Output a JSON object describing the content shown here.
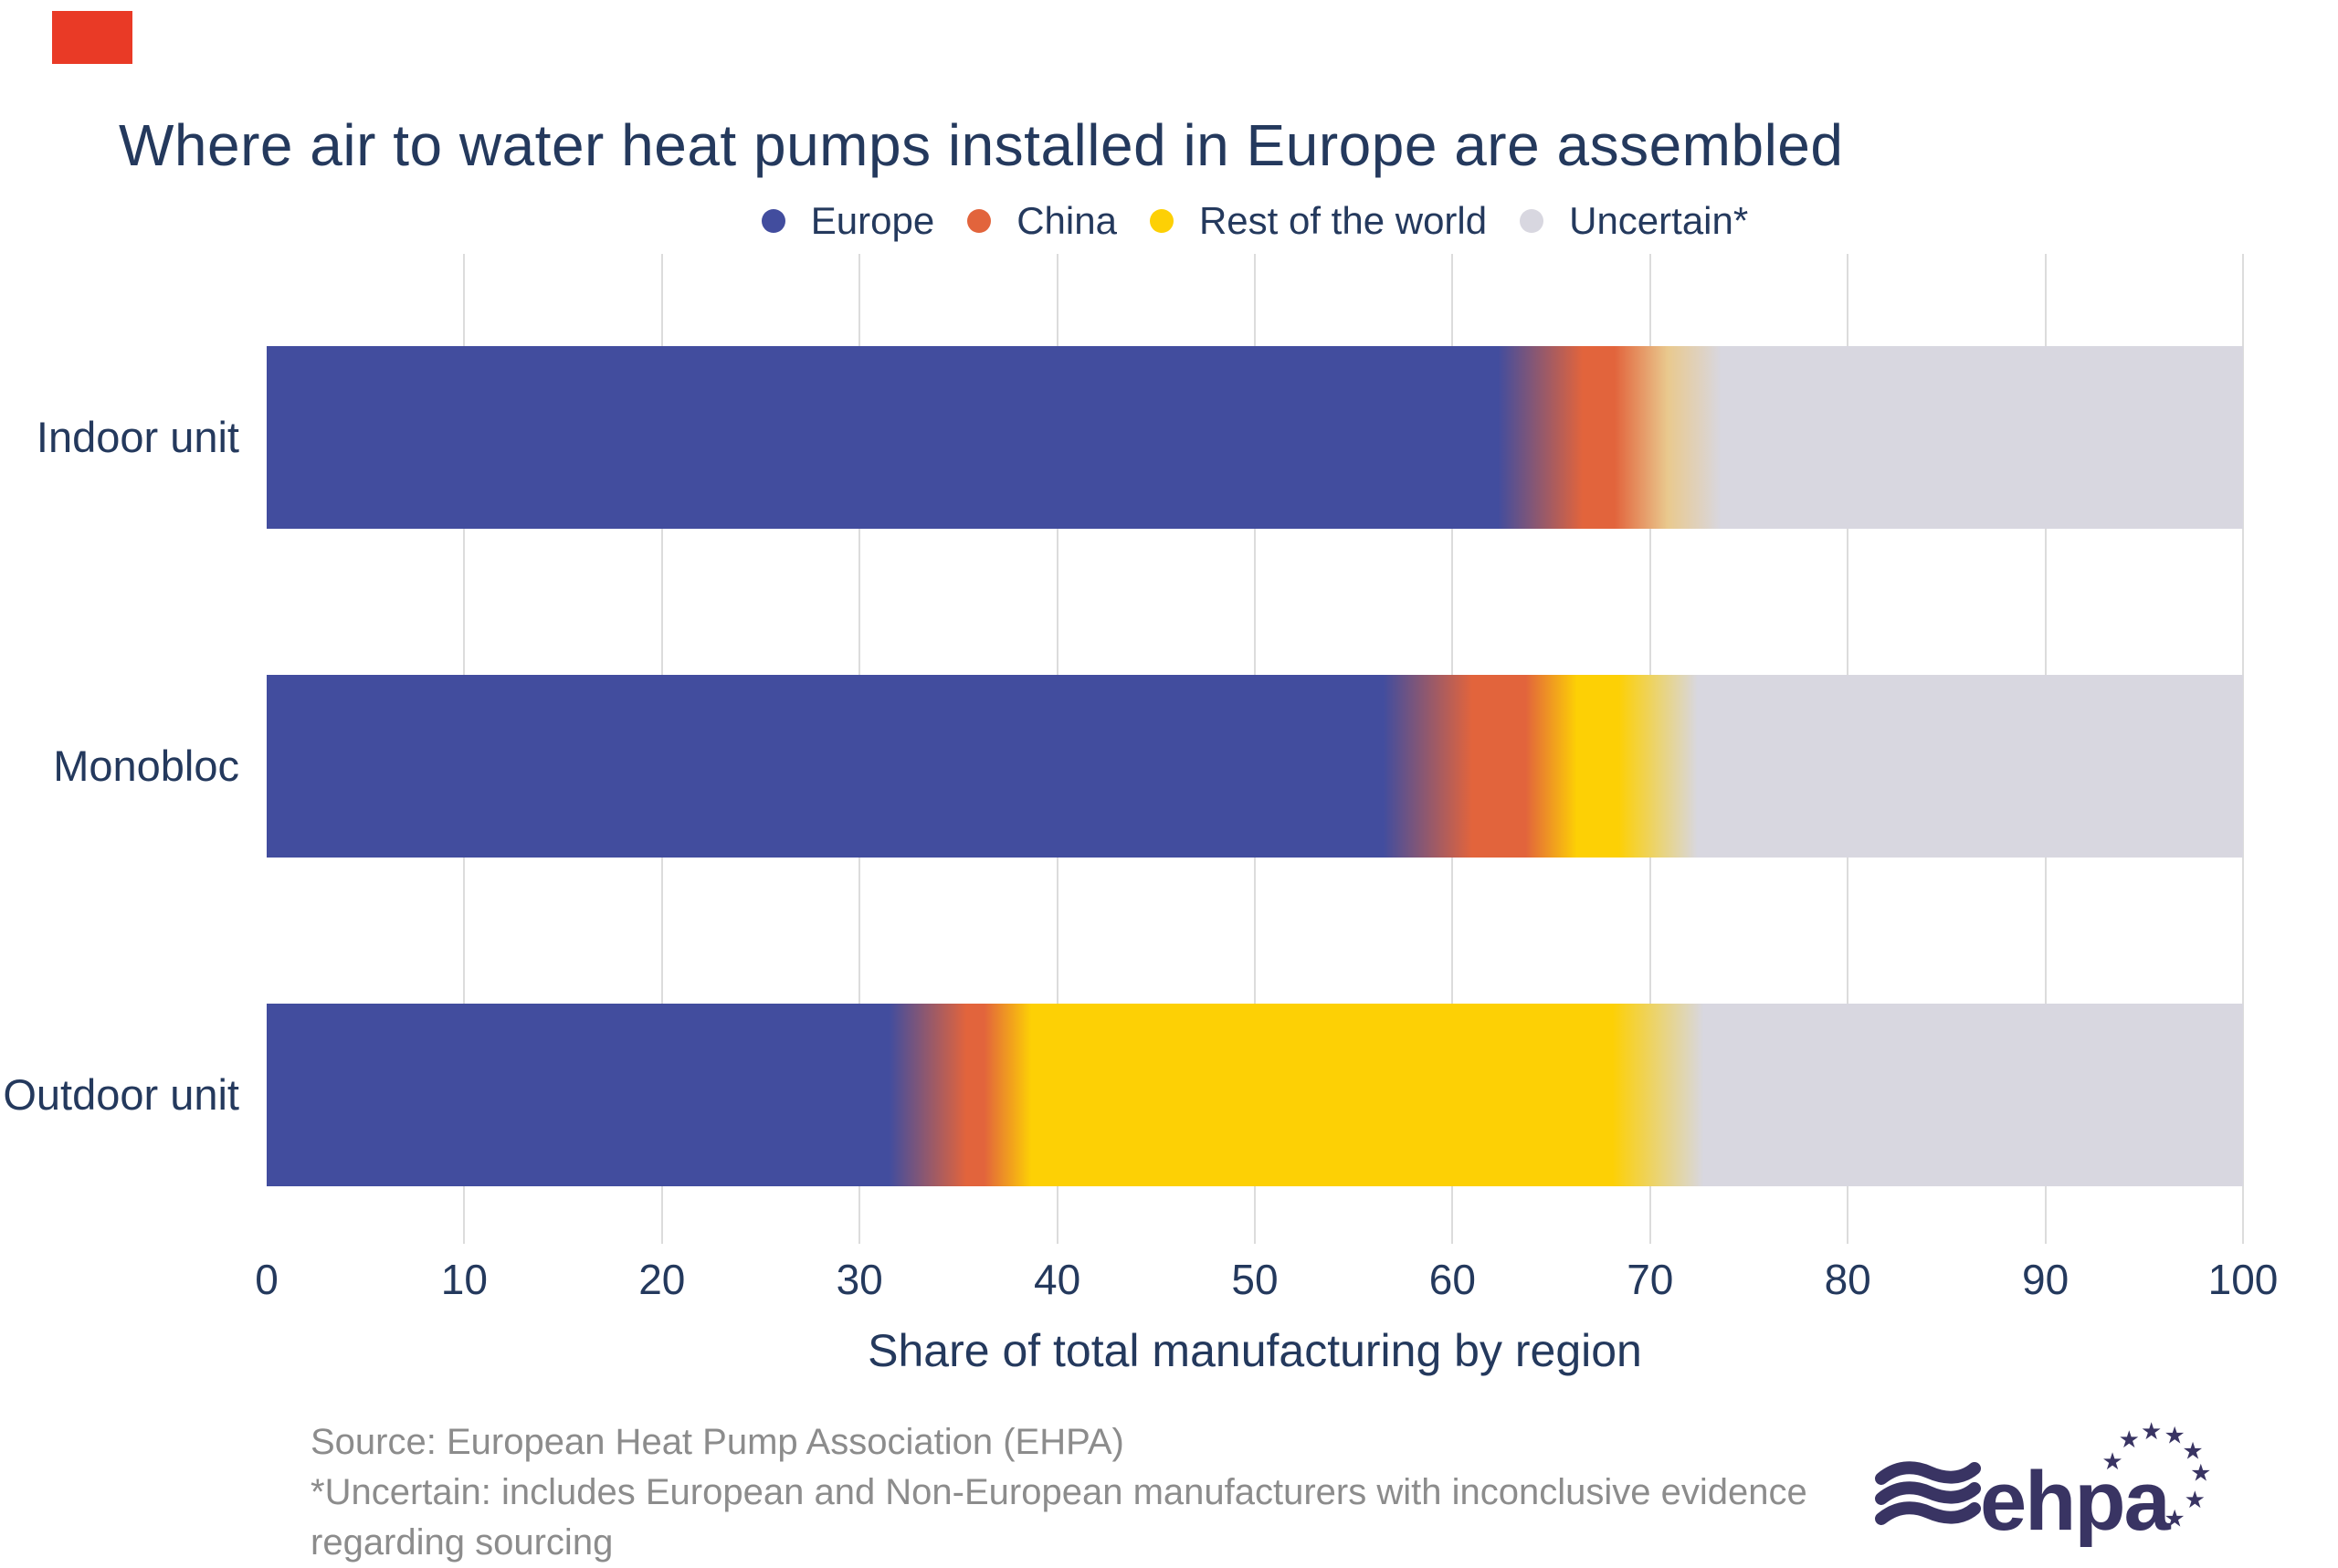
{
  "title": {
    "text": "Where air to water heat pumps installed in Europe are assembled",
    "color": "#24395d"
  },
  "corner_mark": {
    "color": "#e93a26"
  },
  "legend": {
    "items": [
      {
        "label": "Europe",
        "color": "#424d9e"
      },
      {
        "label": "China",
        "color": "#e2643c"
      },
      {
        "label": "Rest of the world",
        "color": "#fdd005"
      },
      {
        "label": "Uncertain*",
        "color": "#d8d7e0"
      }
    ]
  },
  "rows": [
    {
      "label": "Indoor unit",
      "gradient": [
        [
          "#424d9e",
          0
        ],
        [
          "#424d9e",
          62.3
        ],
        [
          "#e2643c",
          66.6
        ],
        [
          "#e2643c",
          68.2
        ],
        [
          "#e9c98e",
          70.9
        ],
        [
          "#d8d7e0",
          73.6
        ],
        [
          "#d8d7e0",
          100
        ]
      ]
    },
    {
      "label": "Monobloc",
      "gradient": [
        [
          "#424d9e",
          0
        ],
        [
          "#424d9e",
          56.5
        ],
        [
          "#e2643c",
          61
        ],
        [
          "#e2643c",
          63.7
        ],
        [
          "#fdd005",
          66.3
        ],
        [
          "#fdd005",
          68.4
        ],
        [
          "#d8d7e0",
          72.4
        ],
        [
          "#d8d7e0",
          100
        ]
      ]
    },
    {
      "label": "Outdoor unit",
      "gradient": [
        [
          "#424d9e",
          0
        ],
        [
          "#424d9e",
          31.5
        ],
        [
          "#e2643c",
          35.4
        ],
        [
          "#e2643c",
          36.3
        ],
        [
          "#fdd005",
          38.7
        ],
        [
          "#fdd005",
          68.1
        ],
        [
          "#d8d7e0",
          72.7
        ],
        [
          "#d8d7e0",
          100
        ]
      ]
    }
  ],
  "axis": {
    "label": "Share of total manufacturing by region",
    "ticks": [
      0,
      10,
      20,
      30,
      40,
      50,
      60,
      70,
      80,
      90,
      100
    ],
    "min": 0,
    "max": 100,
    "tick_color": "#24395d",
    "gridline_color": "#dcdcdc"
  },
  "footer": {
    "color": "#8c8c8c",
    "lines": [
      "Source: European Heat Pump Association (EHPA)",
      "*Uncertain: includes European and Non-European manufacturers with inconclusive evidence",
      "regarding sourcing"
    ]
  },
  "logo": {
    "text": "ehpa",
    "color": "#393463"
  },
  "chart_data": {
    "type": "bar",
    "orientation": "horizontal",
    "stacked": true,
    "title": "Where air to water heat pumps installed in Europe are assembled",
    "categories": [
      "Indoor unit",
      "Monobloc",
      "Outdoor unit"
    ],
    "series": [
      {
        "name": "Europe",
        "color": "#424d9e",
        "values": [
          65,
          59,
          34
        ]
      },
      {
        "name": "China",
        "color": "#e2643c",
        "values": [
          5,
          6,
          4
        ]
      },
      {
        "name": "Rest of the world",
        "color": "#fdd005",
        "values": [
          2,
          5,
          32
        ]
      },
      {
        "name": "Uncertain*",
        "color": "#d8d7e0",
        "values": [
          28,
          30,
          30
        ]
      }
    ],
    "xlabel": "Share of total manufacturing by region",
    "xlim": [
      0,
      100
    ],
    "xticks": [
      0,
      10,
      20,
      30,
      40,
      50,
      60,
      70,
      80,
      90,
      100
    ],
    "grid": true,
    "legend_position": "top",
    "note": "stacked segments blend into each other with smooth gradient transitions"
  }
}
